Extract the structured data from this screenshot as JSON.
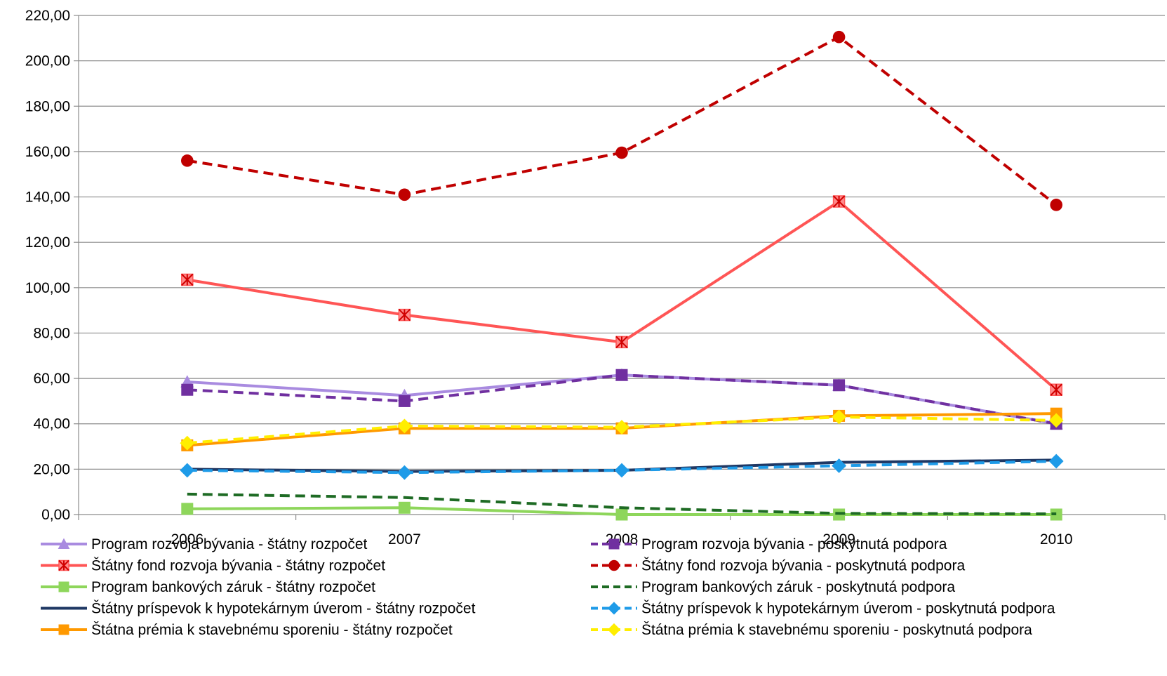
{
  "chart_data": {
    "type": "line",
    "title": "",
    "xlabel": "",
    "ylabel": "",
    "x": [
      "2006",
      "2007",
      "2008",
      "2009",
      "2010"
    ],
    "ylim": [
      0,
      220
    ],
    "yticks": [
      0,
      20,
      40,
      60,
      80,
      100,
      120,
      140,
      160,
      180,
      200,
      220
    ],
    "ytick_labels": [
      "0,00",
      "20,00",
      "40,00",
      "60,00",
      "80,00",
      "100,00",
      "120,00",
      "140,00",
      "160,00",
      "180,00",
      "200,00",
      "220,00"
    ],
    "grid": "horizontal",
    "legend_position": "bottom",
    "series": [
      {
        "name": "Program rozvoja bývania - štátny rozpočet",
        "values": [
          58.5,
          52.5,
          61.5,
          57,
          40
        ],
        "color": "#A98BE0",
        "dash": "solid",
        "marker": "triangle"
      },
      {
        "name": "Program rozvoja bývania - poskytnutá podpora",
        "values": [
          55,
          50,
          61.5,
          57,
          40
        ],
        "color": "#7030A0",
        "dash": "dashed",
        "marker": "square"
      },
      {
        "name": "Štátny fond rozvoja bývania - štátny rozpočet",
        "values": [
          103.5,
          88,
          76,
          138,
          55
        ],
        "color": "#FF5555",
        "dash": "solid",
        "marker": "star"
      },
      {
        "name": "Štátny fond rozvoja bývania - poskytnutá podpora",
        "values": [
          156,
          141,
          159.5,
          210.5,
          136.5
        ],
        "color": "#C00000",
        "dash": "dashed",
        "marker": "circle"
      },
      {
        "name": "Program bankových záruk - štátny rozpočet",
        "values": [
          2.5,
          3,
          0,
          0,
          0
        ],
        "color": "#8ED65B",
        "dash": "solid",
        "marker": "square"
      },
      {
        "name": "Program bankových záruk - poskytnutá podpora",
        "values": [
          9,
          7.5,
          3,
          0.5,
          0.3
        ],
        "color": "#1E6B24",
        "dash": "dashed",
        "marker": "none"
      },
      {
        "name": "Štátny príspevok k hypotekárnym úverom - štátny rozpočet",
        "values": [
          20,
          19,
          19.5,
          23,
          24
        ],
        "color": "#1F3864",
        "dash": "solid",
        "marker": "none"
      },
      {
        "name": "Štátny príspevok k hypotekárnym úverom - poskytnutá podpora",
        "values": [
          19.5,
          18.5,
          19.5,
          21.5,
          23.5
        ],
        "color": "#1E9BE8",
        "dash": "dashed",
        "marker": "diamond"
      },
      {
        "name": "Štátna prémia k stavebnému sporeniu - štátny rozpočet",
        "values": [
          30.5,
          38,
          38,
          43.5,
          44.5
        ],
        "color": "#FF9900",
        "dash": "solid",
        "marker": "square"
      },
      {
        "name": "Štátna prémia k stavebnému sporeniu  - poskytnutá podpora",
        "values": [
          31.5,
          39,
          38.5,
          43,
          41.5
        ],
        "color": "#FFEE00",
        "dash": "dashed",
        "marker": "diamond"
      }
    ]
  }
}
